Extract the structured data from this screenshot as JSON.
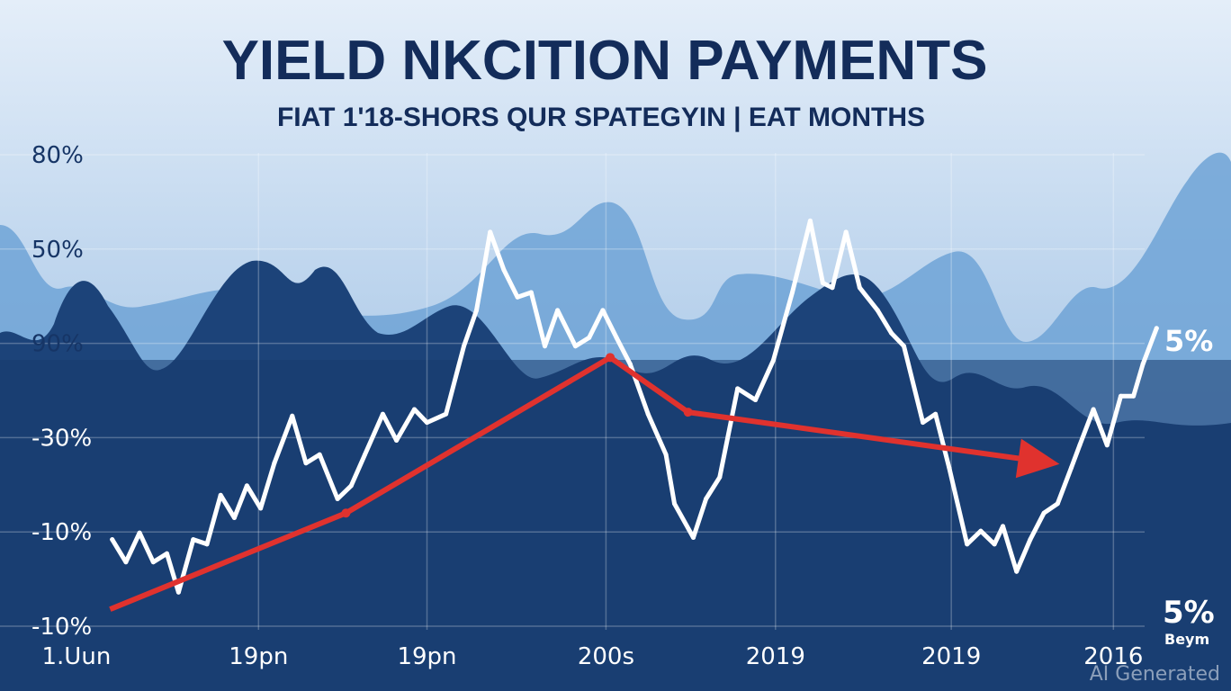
{
  "chart_data": {
    "type": "line",
    "title": "YIELD NKCITION PAYMENTS",
    "subtitle": "FIAT 1'18-SHORS QUR SPATEGYIN | EAT MONTHS",
    "xlabel": "",
    "ylabel": "",
    "xlim": [
      -3,
      100
    ],
    "ylim": [
      0,
      5
    ],
    "grid": true,
    "x_ticks": [
      {
        "t": -3,
        "label": "1.Uun"
      },
      {
        "t": 14.3,
        "label": "19pn"
      },
      {
        "t": 30.3,
        "label": "19pn"
      },
      {
        "t": 47.3,
        "label": "200s"
      },
      {
        "t": 63.4,
        "label": "2019"
      },
      {
        "t": 80.1,
        "label": "2019"
      },
      {
        "t": 95.5,
        "label": "2016"
      }
    ],
    "y_ticks": [
      {
        "v": 0,
        "label": "-10%"
      },
      {
        "v": 1,
        "label": "-10%"
      },
      {
        "v": 2,
        "label": "-30%"
      },
      {
        "v": 3,
        "label": "90%"
      },
      {
        "v": 4,
        "label": "50%"
      },
      {
        "v": 5,
        "label": "80%"
      }
    ],
    "series": [
      {
        "name": "yield",
        "color": "#ffffff",
        "x": [
          0.4,
          1.7,
          3.0,
          4.3,
          5.6,
          6.7,
          8.1,
          9.4,
          10.7,
          12.0,
          13.2,
          14.5,
          15.8,
          17.5,
          18.8,
          20.1,
          21.8,
          23.1,
          24.4,
          26.1,
          27.4,
          29.1,
          30.3,
          32.1,
          33.8,
          35.0,
          36.3,
          37.6,
          38.9,
          40.2,
          41.5,
          42.7,
          44.4,
          45.7,
          47.0,
          48.3,
          49.6,
          51.3,
          53.0,
          53.8,
          55.6,
          56.8,
          58.1,
          59.8,
          61.5,
          63.2,
          65.0,
          66.7,
          67.9,
          68.8,
          70.1,
          71.4,
          73.1,
          74.4,
          75.6,
          77.4,
          78.6,
          79.9,
          81.6,
          82.9,
          84.2,
          85.0,
          86.3,
          87.6,
          88.9,
          90.2,
          91.5,
          92.3,
          93.6,
          94.9,
          96.2,
          97.4,
          98.3,
          99.6
        ],
        "y": [
          0.92,
          0.68,
          0.99,
          0.68,
          0.77,
          0.36,
          0.92,
          0.87,
          1.39,
          1.15,
          1.49,
          1.25,
          1.73,
          2.23,
          1.73,
          1.82,
          1.35,
          1.49,
          1.82,
          2.25,
          1.97,
          2.3,
          2.16,
          2.25,
          2.97,
          3.35,
          4.18,
          3.78,
          3.49,
          3.54,
          2.97,
          3.35,
          2.97,
          3.06,
          3.35,
          3.06,
          2.78,
          2.25,
          1.82,
          1.3,
          0.94,
          1.35,
          1.58,
          2.52,
          2.4,
          2.82,
          3.54,
          4.3,
          3.64,
          3.59,
          4.18,
          3.59,
          3.35,
          3.11,
          2.97,
          2.16,
          2.25,
          1.68,
          0.87,
          1.01,
          0.87,
          1.06,
          0.58,
          0.92,
          1.2,
          1.3,
          1.68,
          1.92,
          2.3,
          1.92,
          2.44,
          2.44,
          2.78,
          3.16
        ]
      },
      {
        "name": "trend",
        "color": "#e0322e",
        "x": [
          0.2,
          22.6,
          47.7,
          55.1,
          89.7
        ],
        "y": [
          0.18,
          1.2,
          2.85,
          2.27,
          1.73
        ]
      }
    ],
    "annotations": [
      {
        "text": "5%",
        "near": "right-middle"
      },
      {
        "text": "5%",
        "near": "bottom-right"
      },
      {
        "text": "Beym",
        "near": "bottom-right"
      }
    ],
    "watermark": "AI Generated",
    "legend": "none"
  }
}
